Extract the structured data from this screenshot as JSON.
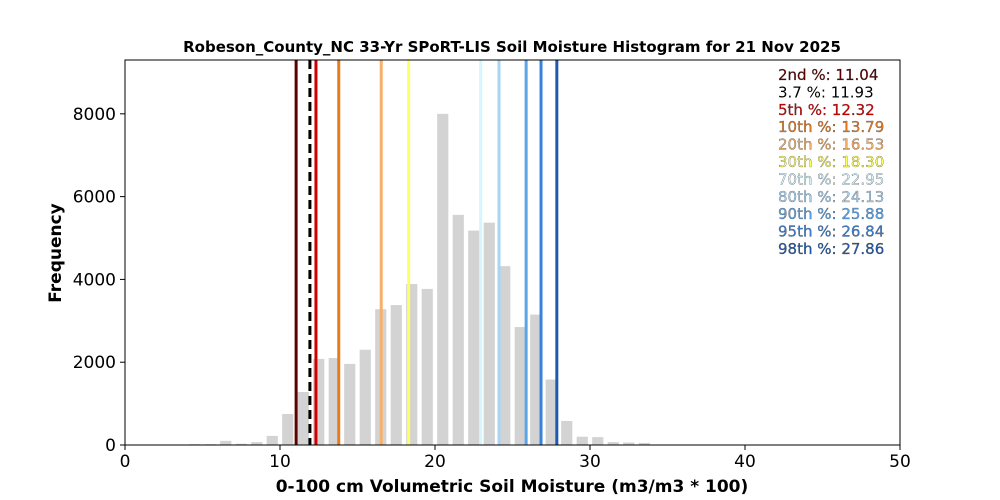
{
  "chart_data": {
    "type": "bar",
    "title": "Robeson_County_NC 33-Yr SPoRT-LIS Soil Moisture Histogram for 21 Nov 2025",
    "xlabel": "0-100 cm Volumetric Soil Moisture (m3/m3 * 100)",
    "ylabel": "Frequency",
    "xlim": [
      0,
      50
    ],
    "ylim": [
      0,
      9300
    ],
    "xticks": [
      "0",
      "10",
      "20",
      "30",
      "40",
      "50"
    ],
    "yticks": [
      "0",
      "2000",
      "4000",
      "6000",
      "8000"
    ],
    "grid": false,
    "legend_position": "top-right",
    "bar_color": "#d3d3d3",
    "bin_width": 1,
    "bins": [
      {
        "x": 4.5,
        "value": 20
      },
      {
        "x": 5.5,
        "value": 20
      },
      {
        "x": 6.5,
        "value": 100
      },
      {
        "x": 7.5,
        "value": 30
      },
      {
        "x": 8.5,
        "value": 70
      },
      {
        "x": 9.5,
        "value": 220
      },
      {
        "x": 10.5,
        "value": 750
      },
      {
        "x": 11.5,
        "value": 1280
      },
      {
        "x": 12.5,
        "value": 2080
      },
      {
        "x": 13.5,
        "value": 2100
      },
      {
        "x": 14.5,
        "value": 1960
      },
      {
        "x": 15.5,
        "value": 2300
      },
      {
        "x": 16.5,
        "value": 3280
      },
      {
        "x": 17.5,
        "value": 3380
      },
      {
        "x": 18.5,
        "value": 3890
      },
      {
        "x": 19.5,
        "value": 3770
      },
      {
        "x": 20.5,
        "value": 8000
      },
      {
        "x": 21.5,
        "value": 5560
      },
      {
        "x": 22.5,
        "value": 5180
      },
      {
        "x": 23.5,
        "value": 5370
      },
      {
        "x": 24.5,
        "value": 4320
      },
      {
        "x": 25.5,
        "value": 2850
      },
      {
        "x": 26.5,
        "value": 3150
      },
      {
        "x": 27.5,
        "value": 1580
      },
      {
        "x": 28.5,
        "value": 580
      },
      {
        "x": 29.5,
        "value": 200
      },
      {
        "x": 30.5,
        "value": 190
      },
      {
        "x": 31.5,
        "value": 70
      },
      {
        "x": 32.5,
        "value": 60
      },
      {
        "x": 33.5,
        "value": 50
      }
    ],
    "percentiles": [
      {
        "label": "2nd %: 11.04",
        "value": 11.04,
        "color": "#5c0000",
        "dashed": false
      },
      {
        "label": "3.7 %: 11.93",
        "value": 11.93,
        "color": "#000000",
        "dashed": true
      },
      {
        "label": "5th %: 12.32",
        "value": 12.32,
        "color": "#d00000",
        "dashed": false
      },
      {
        "label": "10th %: 13.79",
        "value": 13.79,
        "color": "#e87a1e",
        "dashed": false
      },
      {
        "label": "20th %: 16.53",
        "value": 16.53,
        "color": "#f5b06a",
        "dashed": false
      },
      {
        "label": "30th %: 18.30",
        "value": 18.3,
        "color": "#ffff66",
        "dashed": false
      },
      {
        "label": "70th %: 22.95",
        "value": 22.95,
        "color": "#d5f5ff",
        "dashed": false
      },
      {
        "label": "80th %: 24.13",
        "value": 24.13,
        "color": "#a8d4f5",
        "dashed": false
      },
      {
        "label": "90th %: 25.88",
        "value": 25.88,
        "color": "#5aa5e8",
        "dashed": false
      },
      {
        "label": "95th %: 26.84",
        "value": 26.84,
        "color": "#3a82d8",
        "dashed": false
      },
      {
        "label": "98th %: 27.86",
        "value": 27.86,
        "color": "#1e5ab0",
        "dashed": false
      }
    ]
  }
}
